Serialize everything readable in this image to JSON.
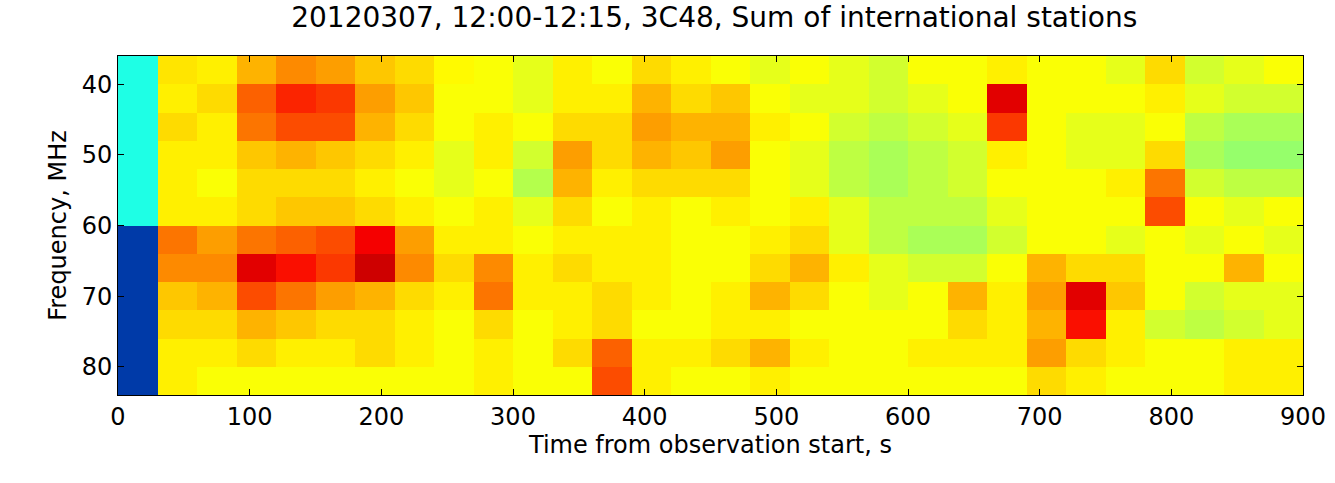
{
  "chart_data": {
    "type": "heatmap",
    "title": "20120307, 12:00-12:15, 3C48, Sum of international stations",
    "x_label": "Time from observation start, s",
    "y_label": "Frequency, MHz",
    "color": "jet",
    "grid": false,
    "xlim": [
      0,
      900
    ],
    "ylim": [
      84,
      36
    ],
    "xticks": [
      0,
      100,
      200,
      300,
      400,
      500,
      600,
      700,
      800,
      900
    ],
    "yticks": [
      40,
      50,
      60,
      70,
      80
    ],
    "zlim": [
      0,
      1
    ],
    "x": [
      15,
      45,
      75,
      105,
      135,
      165,
      195,
      225,
      255,
      285,
      315,
      345,
      375,
      405,
      435,
      465,
      495,
      525,
      555,
      585,
      615,
      645,
      675,
      705,
      735,
      765,
      795,
      825,
      855,
      885
    ],
    "y": [
      38,
      42,
      46,
      50,
      54,
      58,
      62,
      66,
      70,
      74,
      78,
      82
    ],
    "z": [
      [
        0.4,
        0.65,
        0.64,
        0.7,
        0.74,
        0.72,
        0.68,
        0.66,
        0.63,
        0.62,
        0.6,
        0.64,
        0.62,
        0.66,
        0.64,
        0.62,
        0.6,
        0.62,
        0.6,
        0.58,
        0.62,
        0.62,
        0.64,
        0.62,
        0.62,
        0.6,
        0.66,
        0.58,
        0.6,
        0.62
      ],
      [
        0.4,
        0.64,
        0.66,
        0.78,
        0.84,
        0.82,
        0.72,
        0.68,
        0.62,
        0.62,
        0.6,
        0.64,
        0.64,
        0.7,
        0.66,
        0.68,
        0.62,
        0.6,
        0.6,
        0.58,
        0.6,
        0.62,
        0.9,
        0.62,
        0.62,
        0.62,
        0.64,
        0.6,
        0.58,
        0.58
      ],
      [
        0.4,
        0.66,
        0.64,
        0.76,
        0.8,
        0.8,
        0.7,
        0.66,
        0.62,
        0.64,
        0.62,
        0.66,
        0.66,
        0.72,
        0.7,
        0.7,
        0.64,
        0.62,
        0.58,
        0.56,
        0.58,
        0.6,
        0.82,
        0.62,
        0.6,
        0.6,
        0.62,
        0.56,
        0.54,
        0.54
      ],
      [
        0.4,
        0.64,
        0.64,
        0.68,
        0.7,
        0.68,
        0.66,
        0.64,
        0.6,
        0.64,
        0.58,
        0.72,
        0.66,
        0.7,
        0.68,
        0.72,
        0.62,
        0.6,
        0.56,
        0.54,
        0.56,
        0.58,
        0.64,
        0.62,
        0.6,
        0.6,
        0.66,
        0.54,
        0.52,
        0.52
      ],
      [
        0.4,
        0.64,
        0.62,
        0.66,
        0.66,
        0.66,
        0.64,
        0.62,
        0.6,
        0.62,
        0.55,
        0.7,
        0.64,
        0.66,
        0.66,
        0.66,
        0.62,
        0.6,
        0.56,
        0.54,
        0.56,
        0.58,
        0.62,
        0.62,
        0.62,
        0.64,
        0.76,
        0.58,
        0.56,
        0.56
      ],
      [
        0.4,
        0.64,
        0.64,
        0.66,
        0.68,
        0.68,
        0.66,
        0.64,
        0.62,
        0.64,
        0.6,
        0.66,
        0.62,
        0.64,
        0.62,
        0.64,
        0.62,
        0.64,
        0.6,
        0.56,
        0.56,
        0.56,
        0.6,
        0.62,
        0.62,
        0.62,
        0.8,
        0.62,
        0.6,
        0.62
      ],
      [
        0.12,
        0.76,
        0.72,
        0.76,
        0.78,
        0.8,
        0.88,
        0.72,
        0.64,
        0.64,
        0.62,
        0.64,
        0.64,
        0.64,
        0.62,
        0.62,
        0.64,
        0.66,
        0.6,
        0.56,
        0.54,
        0.54,
        0.58,
        0.62,
        0.62,
        0.6,
        0.62,
        0.6,
        0.62,
        0.6
      ],
      [
        0.12,
        0.74,
        0.74,
        0.9,
        0.86,
        0.82,
        0.92,
        0.74,
        0.66,
        0.74,
        0.64,
        0.66,
        0.64,
        0.64,
        0.62,
        0.62,
        0.66,
        0.7,
        0.64,
        0.6,
        0.58,
        0.58,
        0.62,
        0.7,
        0.66,
        0.66,
        0.62,
        0.62,
        0.7,
        0.62
      ],
      [
        0.12,
        0.68,
        0.7,
        0.8,
        0.76,
        0.72,
        0.7,
        0.66,
        0.64,
        0.76,
        0.64,
        0.64,
        0.66,
        0.64,
        0.62,
        0.64,
        0.7,
        0.66,
        0.62,
        0.6,
        0.62,
        0.7,
        0.64,
        0.72,
        0.9,
        0.68,
        0.62,
        0.58,
        0.6,
        0.6
      ],
      [
        0.12,
        0.66,
        0.66,
        0.7,
        0.68,
        0.66,
        0.66,
        0.64,
        0.62,
        0.66,
        0.62,
        0.64,
        0.66,
        0.62,
        0.62,
        0.64,
        0.64,
        0.62,
        0.62,
        0.62,
        0.62,
        0.66,
        0.64,
        0.7,
        0.86,
        0.64,
        0.58,
        0.56,
        0.58,
        0.6
      ],
      [
        0.12,
        0.64,
        0.64,
        0.66,
        0.64,
        0.64,
        0.66,
        0.64,
        0.62,
        0.64,
        0.62,
        0.66,
        0.78,
        0.64,
        0.64,
        0.66,
        0.7,
        0.64,
        0.62,
        0.62,
        0.64,
        0.64,
        0.64,
        0.72,
        0.66,
        0.64,
        0.62,
        0.62,
        0.64,
        0.64
      ],
      [
        0.12,
        0.64,
        0.62,
        0.62,
        0.62,
        0.62,
        0.62,
        0.62,
        0.62,
        0.64,
        0.62,
        0.62,
        0.8,
        0.64,
        0.62,
        0.62,
        0.64,
        0.62,
        0.62,
        0.62,
        0.62,
        0.62,
        0.62,
        0.66,
        0.64,
        0.62,
        0.62,
        0.62,
        0.64,
        0.64
      ]
    ]
  }
}
